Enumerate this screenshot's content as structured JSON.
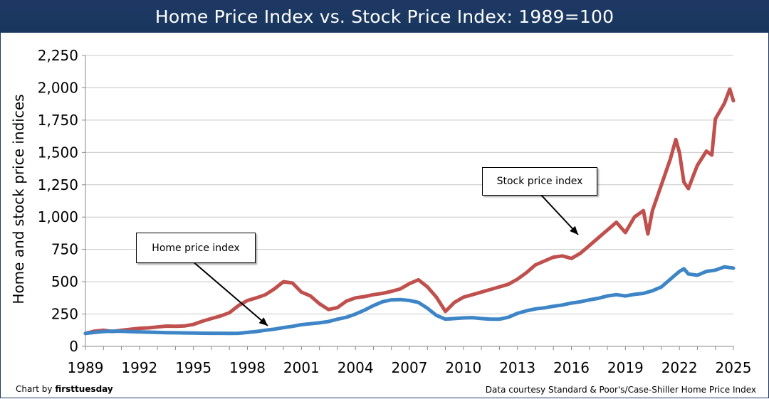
{
  "title": "Home Price Index vs. Stock Price Index: 1989=100",
  "footer": {
    "credit_prefix": "Chart by",
    "credit_brand": "firsttuesday",
    "source": "Data courtesy Standard & Poor's/Case-Shiller Home Price Index"
  },
  "chart_data": {
    "type": "line",
    "title": "Home Price Index vs. Stock Price Index: 1989=100",
    "xlabel": "",
    "ylabel": "Home and stock price indices",
    "xlim": [
      1989,
      2025
    ],
    "ylim": [
      0,
      2250
    ],
    "x_ticks": [
      1989,
      1992,
      1995,
      1998,
      2001,
      2004,
      2007,
      2010,
      2013,
      2016,
      2019,
      2022,
      2025
    ],
    "x_tick_labels": [
      "1989",
      "1992",
      "1995",
      "1998",
      "2001",
      "2004",
      "2007",
      "2010",
      "2013",
      "2016",
      "2019",
      "2022",
      "2025"
    ],
    "y_ticks": [
      0,
      250,
      500,
      750,
      1000,
      1250,
      1500,
      1750,
      2000,
      2250
    ],
    "y_tick_labels": [
      "0",
      "250",
      "500",
      "750",
      "1,000",
      "1,250",
      "1,500",
      "1,750",
      "2,000",
      "2,250"
    ],
    "grid": "horizontal",
    "legend": "none",
    "annotations": [
      {
        "text": "Home price index",
        "points_to_series": "home"
      },
      {
        "text": "Stock price index",
        "points_to_series": "stock"
      }
    ],
    "series": [
      {
        "id": "stock",
        "color": "#c0504d",
        "x": [
          1989,
          1989.5,
          1990,
          1990.5,
          1991,
          1991.5,
          1992,
          1992.5,
          1993,
          1993.5,
          1994,
          1994.5,
          1995,
          1995.5,
          1996,
          1996.5,
          1997,
          1997.5,
          1998,
          1998.5,
          1999,
          1999.5,
          2000,
          2000.5,
          2001,
          2001.5,
          2002,
          2002.5,
          2003,
          2003.5,
          2004,
          2004.5,
          2005,
          2005.5,
          2006,
          2006.5,
          2007,
          2007.5,
          2008,
          2008.5,
          2009,
          2009.5,
          2010,
          2010.5,
          2011,
          2011.5,
          2012,
          2012.5,
          2013,
          2013.5,
          2014,
          2014.5,
          2015,
          2015.5,
          2016,
          2016.5,
          2017,
          2017.5,
          2018,
          2018.5,
          2019,
          2019.5,
          2020,
          2020.25,
          2020.5,
          2021,
          2021.5,
          2021.8,
          2022,
          2022.25,
          2022.5,
          2022.8,
          2023,
          2023.5,
          2023.8,
          2024,
          2024.5,
          2024.8,
          2025
        ],
        "values": [
          100,
          118,
          125,
          115,
          125,
          132,
          140,
          143,
          150,
          157,
          155,
          158,
          170,
          195,
          215,
          235,
          260,
          315,
          355,
          375,
          400,
          445,
          500,
          490,
          420,
          390,
          330,
          285,
          300,
          350,
          375,
          385,
          400,
          410,
          425,
          445,
          485,
          515,
          460,
          380,
          270,
          340,
          380,
          400,
          420,
          440,
          460,
          480,
          520,
          570,
          630,
          660,
          690,
          700,
          680,
          720,
          780,
          840,
          900,
          960,
          880,
          1000,
          1050,
          870,
          1050,
          1250,
          1450,
          1600,
          1500,
          1270,
          1220,
          1330,
          1400,
          1510,
          1480,
          1760,
          1880,
          1990,
          1900
        ]
      },
      {
        "id": "home",
        "color": "#3d85c6",
        "x": [
          1989,
          1989.5,
          1990,
          1990.5,
          1991,
          1991.5,
          1992,
          1992.5,
          1993,
          1993.5,
          1994,
          1994.5,
          1995,
          1995.5,
          1996,
          1996.5,
          1997,
          1997.5,
          1998,
          1998.5,
          1999,
          1999.5,
          2000,
          2000.5,
          2001,
          2001.5,
          2002,
          2002.5,
          2003,
          2003.5,
          2004,
          2004.5,
          2005,
          2005.5,
          2006,
          2006.5,
          2007,
          2007.5,
          2008,
          2008.5,
          2009,
          2009.5,
          2010,
          2010.5,
          2011,
          2011.5,
          2012,
          2012.5,
          2013,
          2013.5,
          2014,
          2014.5,
          2015,
          2015.5,
          2016,
          2016.5,
          2017,
          2017.5,
          2018,
          2018.5,
          2019,
          2019.5,
          2020,
          2020.5,
          2021,
          2021.5,
          2022,
          2022.25,
          2022.5,
          2023,
          2023.5,
          2024,
          2024.5,
          2025
        ],
        "values": [
          100,
          108,
          115,
          118,
          117,
          114,
          112,
          110,
          108,
          106,
          105,
          104,
          103,
          102,
          101,
          101,
          100,
          101,
          108,
          115,
          125,
          133,
          145,
          155,
          168,
          175,
          182,
          192,
          210,
          225,
          250,
          280,
          315,
          345,
          360,
          362,
          355,
          340,
          295,
          240,
          210,
          215,
          220,
          222,
          215,
          210,
          210,
          225,
          255,
          275,
          290,
          298,
          310,
          320,
          335,
          345,
          360,
          372,
          390,
          400,
          390,
          402,
          410,
          430,
          460,
          520,
          580,
          600,
          560,
          550,
          580,
          590,
          615,
          605
        ]
      }
    ]
  }
}
